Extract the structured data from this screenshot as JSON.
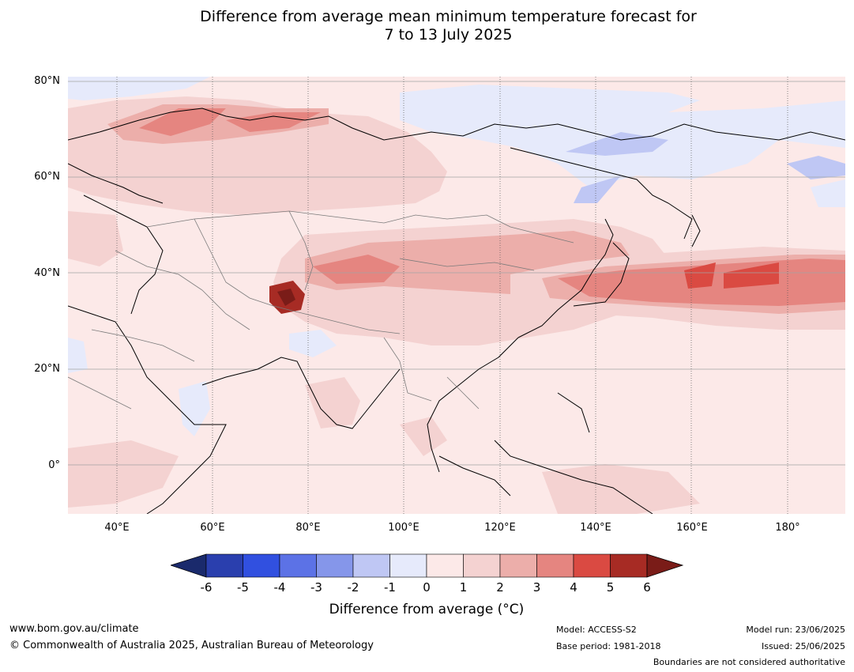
{
  "title": {
    "line1": "Difference from average mean minimum temperature forecast for",
    "line2": "7 to 13 July 2025"
  },
  "axes": {
    "lat_labels": [
      "80°N",
      "60°N",
      "40°N",
      "20°N",
      "0°"
    ],
    "lon_labels": [
      "40°E",
      "60°E",
      "80°E",
      "100°E",
      "120°E",
      "140°E",
      "160°E",
      "180°"
    ]
  },
  "colorbar": {
    "ticks": [
      "-6",
      "-5",
      "-4",
      "-3",
      "-2",
      "-1",
      "0",
      "1",
      "2",
      "3",
      "4",
      "5",
      "6"
    ],
    "colors": [
      "#1a2a6c",
      "#2a3fae",
      "#3150e0",
      "#5c72e6",
      "#8596ea",
      "#bfc7f4",
      "#e6eafb",
      "#fce9e8",
      "#f4d2d1",
      "#ecaeaa",
      "#e58580",
      "#da4a42",
      "#a72b24",
      "#7a1c18"
    ],
    "label": "Difference from average (°C)"
  },
  "footer": {
    "website": "www.bom.gov.au/climate",
    "copyright": "© Commonwealth of Australia 2025, Australian Bureau of Meteorology",
    "model": "Model: ACCESS-S2",
    "base_period": "Base period: 1981-2018",
    "model_run": "Model run: 23/06/2025",
    "issued": "Issued: 25/06/2025",
    "boundaries": "Boundaries are not considered authoritative"
  }
}
